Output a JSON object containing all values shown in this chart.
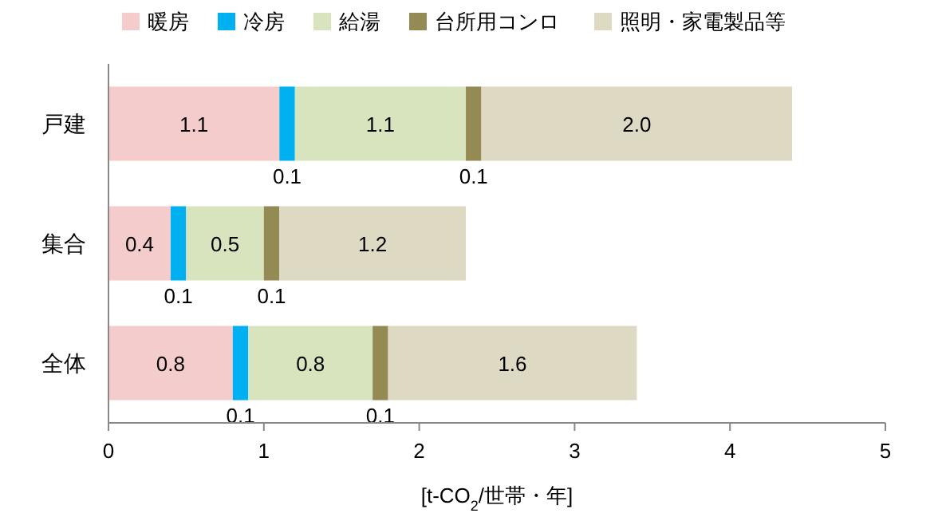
{
  "chart_data": {
    "type": "bar",
    "orientation": "horizontal",
    "stacked": true,
    "categories": [
      "戸建",
      "集合",
      "全体"
    ],
    "series": [
      {
        "name": "暖房",
        "color": "#f4cccc",
        "values": [
          1.1,
          0.4,
          0.8
        ],
        "value_labels": [
          "1.1",
          "0.4",
          "0.8"
        ]
      },
      {
        "name": "冷房",
        "color": "#00b0f0",
        "values": [
          0.1,
          0.1,
          0.1
        ],
        "value_labels": [
          "0.1",
          "0.1",
          "0.1"
        ]
      },
      {
        "name": "給湯",
        "color": "#d7e4bd",
        "values": [
          1.1,
          0.5,
          0.8
        ],
        "value_labels": [
          "1.1",
          "0.5",
          "0.8"
        ]
      },
      {
        "name": "台所用コンロ",
        "color": "#948a54",
        "values": [
          0.1,
          0.1,
          0.1
        ],
        "value_labels": [
          "0.1",
          "0.1",
          "0.1"
        ]
      },
      {
        "name": "照明・家電製品等",
        "color": "#ddd9c3",
        "values": [
          2.0,
          1.2,
          1.6
        ],
        "value_labels": [
          "2.0",
          "1.2",
          "1.6"
        ]
      }
    ],
    "xlim": [
      0,
      5
    ],
    "xticks": [
      0,
      1,
      2,
      3,
      4,
      5
    ],
    "xlabel": "[t-CO$_{2}$/世帯・年]",
    "legend": "top"
  }
}
